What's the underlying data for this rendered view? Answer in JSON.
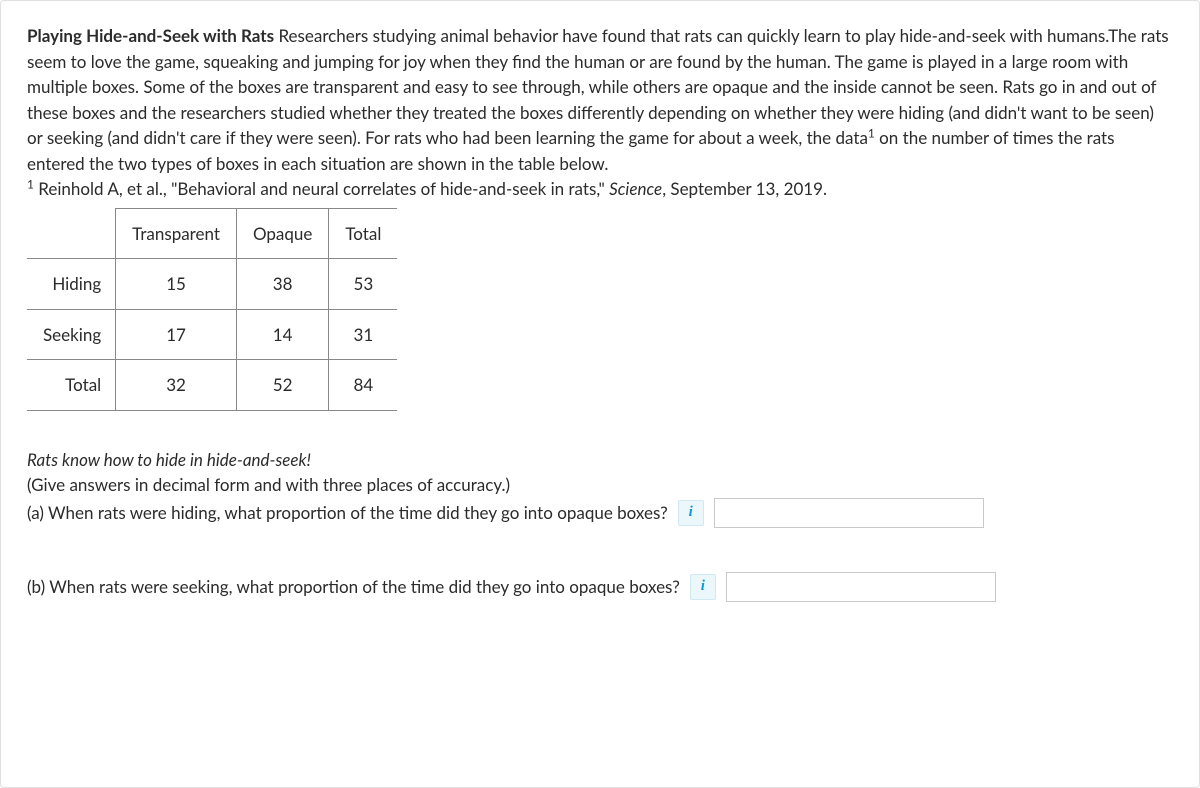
{
  "intro": {
    "bold_title": "Playing Hide-and-Seek with Rats",
    "body_html": "Researchers studying animal behavior have found that rats can quickly learn to play hide-and-seek with humans.The rats seem to love the game, squeaking and jumping for joy when they find the human or are found by the human. The game is played in a large room with multiple boxes. Some of the boxes are transparent and easy to see through, while others are opaque and the inside cannot be seen. Rats go in and out of these boxes and the researchers studied whether they treated the boxes differently depending on whether they were hiding (and didn't want to be seen) or seeking (and didn't care if they were seen). For rats who had been learning the game for about a week, the data",
    "sup": "1",
    "body_tail": " on the number of times the rats entered the two types of boxes in each situation are shown in the table below."
  },
  "footnote": {
    "sup": "1",
    "prefix": " Reinhold A, et al., \"Behavioral and neural correlates of hide-and-seek in rats,\" ",
    "journal": "Science",
    "suffix": ", September 13, 2019."
  },
  "table": {
    "type": "table",
    "columns": [
      "",
      "Transparent",
      "Opaque",
      "Total"
    ],
    "rows": [
      [
        "Hiding",
        "15",
        "38",
        "53"
      ],
      [
        "Seeking",
        "17",
        "14",
        "31"
      ],
      [
        "Total",
        "32",
        "52",
        "84"
      ]
    ],
    "border_color": "#888888",
    "cell_fontsize": 17
  },
  "caption_italic": "Rats know how to hide in hide-and-seek!",
  "instruction": "(Give answers in decimal form and with three places of accuracy.)",
  "questions": {
    "a": {
      "text": "(a) When rats were hiding, what proportion of the time did they go into opaque boxes?",
      "info_label": "i",
      "value": ""
    },
    "b": {
      "text": "(b) When rats were seeking, what proportion of the time did they go into opaque boxes?",
      "info_label": "i",
      "value": ""
    }
  },
  "colors": {
    "text": "#2b2b2b",
    "border": "#e0e0e0",
    "info_bg": "#ecf7fb",
    "info_border": "#cfe8f2",
    "info_fg": "#0a9bd6",
    "input_border": "#c9c9c9"
  }
}
